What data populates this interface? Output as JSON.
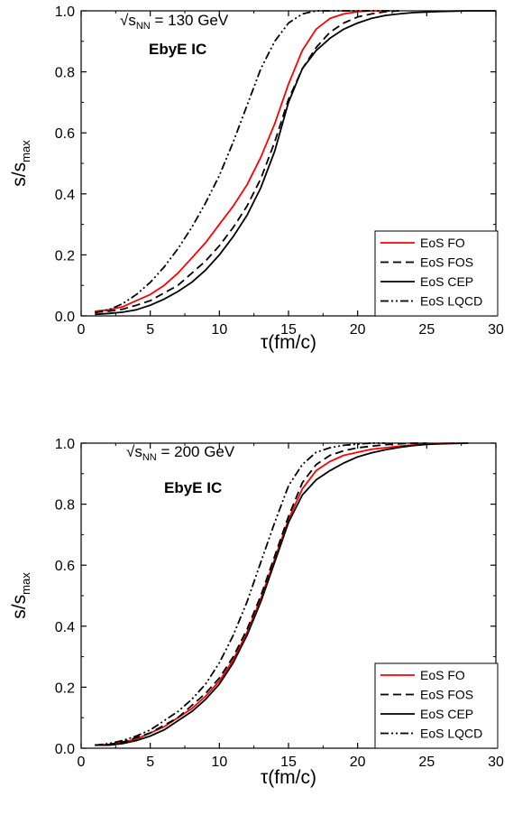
{
  "chart_data": [
    {
      "type": "line",
      "xlabel": "τ(fm/c)",
      "ylabel": {
        "base": "s/s",
        "sub": "max"
      },
      "annotation": {
        "prefix": "√s",
        "sub": "NN",
        "suffix": " = 130 GeV"
      },
      "annotation2": "EbyE IC",
      "xlim": [
        0,
        30
      ],
      "ylim": [
        0,
        1.0
      ],
      "xticks": [
        0,
        5,
        10,
        15,
        20,
        25,
        30
      ],
      "yticks": [
        0.0,
        0.2,
        0.4,
        0.6,
        0.8,
        1.0
      ],
      "legend_position": "bottom-right",
      "series": [
        {
          "name": "EoS FO",
          "color": "#ff0000",
          "dash": "solid",
          "x": [
            1,
            2,
            3,
            4,
            5,
            6,
            7,
            8,
            9,
            10,
            11,
            12,
            13,
            14,
            15,
            16,
            17,
            18,
            19,
            20,
            21,
            22
          ],
          "y": [
            0.015,
            0.02,
            0.03,
            0.05,
            0.07,
            0.1,
            0.14,
            0.19,
            0.24,
            0.3,
            0.36,
            0.43,
            0.52,
            0.63,
            0.76,
            0.87,
            0.94,
            0.975,
            0.99,
            0.997,
            1.0,
            1.0
          ]
        },
        {
          "name": "EoS FOS",
          "color": "#000000",
          "dash": "dash",
          "x": [
            1,
            2,
            3,
            4,
            5,
            6,
            7,
            8,
            9,
            10,
            11,
            12,
            13,
            14,
            15,
            16,
            17,
            18,
            19,
            20,
            21,
            22,
            23
          ],
          "y": [
            0.012,
            0.015,
            0.022,
            0.035,
            0.05,
            0.075,
            0.1,
            0.14,
            0.18,
            0.23,
            0.29,
            0.36,
            0.45,
            0.57,
            0.71,
            0.81,
            0.88,
            0.93,
            0.96,
            0.98,
            0.99,
            0.997,
            1.0
          ]
        },
        {
          "name": "EoS CEP",
          "color": "#000000",
          "dash": "solid",
          "x": [
            1,
            2,
            3,
            4,
            5,
            6,
            7,
            8,
            9,
            10,
            11,
            12,
            13,
            14,
            15,
            16,
            17,
            18,
            19,
            20,
            21,
            22,
            23,
            24,
            25,
            26,
            27,
            28,
            29,
            30
          ],
          "y": [
            0.005,
            0.008,
            0.012,
            0.02,
            0.035,
            0.055,
            0.08,
            0.11,
            0.15,
            0.2,
            0.26,
            0.33,
            0.42,
            0.54,
            0.7,
            0.81,
            0.87,
            0.91,
            0.94,
            0.96,
            0.975,
            0.985,
            0.99,
            0.994,
            0.996,
            0.998,
            0.999,
            1.0,
            1.0,
            1.0
          ]
        },
        {
          "name": "EoS LQCD",
          "color": "#000000",
          "dash": "dashdotdot",
          "x": [
            1,
            2,
            3,
            4,
            5,
            6,
            7,
            8,
            9,
            10,
            11,
            12,
            13,
            14,
            15,
            16,
            17,
            18,
            19,
            20,
            21,
            22,
            23
          ],
          "y": [
            0.01,
            0.02,
            0.04,
            0.07,
            0.11,
            0.16,
            0.22,
            0.29,
            0.37,
            0.46,
            0.57,
            0.69,
            0.81,
            0.9,
            0.96,
            0.99,
            1.0,
            1.0,
            1.0,
            1.0,
            1.0,
            1.0,
            1.0
          ]
        }
      ]
    },
    {
      "type": "line",
      "xlabel": "τ(fm/c)",
      "ylabel": {
        "base": "s/s",
        "sub": "max"
      },
      "annotation": {
        "prefix": "√s",
        "sub": "NN",
        "suffix": " = 200 GeV"
      },
      "annotation2": "EbyE IC",
      "xlim": [
        0,
        30
      ],
      "ylim": [
        0,
        1.0
      ],
      "xticks": [
        0,
        5,
        10,
        15,
        20,
        25,
        30
      ],
      "yticks": [
        0.0,
        0.2,
        0.4,
        0.6,
        0.8,
        1.0
      ],
      "legend_position": "bottom-right",
      "series": [
        {
          "name": "EoS FO",
          "color": "#ff0000",
          "dash": "solid",
          "x": [
            1,
            2,
            3,
            4,
            5,
            6,
            7,
            8,
            9,
            10,
            11,
            12,
            13,
            14,
            15,
            16,
            17,
            18,
            19,
            20,
            21,
            22,
            23,
            24,
            25,
            26,
            27
          ],
          "y": [
            0.01,
            0.012,
            0.02,
            0.03,
            0.05,
            0.07,
            0.1,
            0.13,
            0.17,
            0.22,
            0.29,
            0.38,
            0.49,
            0.62,
            0.75,
            0.85,
            0.91,
            0.94,
            0.96,
            0.97,
            0.98,
            0.985,
            0.99,
            0.994,
            0.997,
            0.999,
            1.0
          ]
        },
        {
          "name": "EoS FOS",
          "color": "#000000",
          "dash": "dash",
          "x": [
            1,
            2,
            3,
            4,
            5,
            6,
            7,
            8,
            9,
            10,
            11,
            12,
            13,
            14,
            15,
            16,
            17,
            18,
            19,
            20,
            21,
            22,
            23,
            24,
            25
          ],
          "y": [
            0.01,
            0.012,
            0.02,
            0.035,
            0.05,
            0.075,
            0.1,
            0.14,
            0.18,
            0.23,
            0.3,
            0.39,
            0.5,
            0.63,
            0.76,
            0.87,
            0.93,
            0.96,
            0.975,
            0.985,
            0.99,
            0.995,
            0.998,
            1.0,
            1.0
          ]
        },
        {
          "name": "EoS CEP",
          "color": "#000000",
          "dash": "solid",
          "x": [
            1,
            2,
            3,
            4,
            5,
            6,
            7,
            8,
            9,
            10,
            11,
            12,
            13,
            14,
            15,
            16,
            17,
            18,
            19,
            20,
            21,
            22,
            23,
            24,
            25,
            26,
            27,
            28
          ],
          "y": [
            0.01,
            0.01,
            0.015,
            0.025,
            0.04,
            0.06,
            0.09,
            0.12,
            0.16,
            0.21,
            0.28,
            0.37,
            0.48,
            0.61,
            0.74,
            0.83,
            0.88,
            0.91,
            0.935,
            0.955,
            0.968,
            0.978,
            0.986,
            0.992,
            0.996,
            0.998,
            0.999,
            1.0
          ]
        },
        {
          "name": "EoS LQCD",
          "color": "#000000",
          "dash": "dashdotdot",
          "x": [
            1,
            2,
            3,
            4,
            5,
            6,
            7,
            8,
            9,
            10,
            11,
            12,
            13,
            14,
            15,
            16,
            17,
            18,
            19,
            20,
            21,
            22
          ],
          "y": [
            0.01,
            0.015,
            0.025,
            0.04,
            0.06,
            0.09,
            0.12,
            0.16,
            0.21,
            0.28,
            0.37,
            0.48,
            0.61,
            0.74,
            0.86,
            0.93,
            0.97,
            0.985,
            0.993,
            0.997,
            1.0,
            1.0
          ]
        }
      ]
    }
  ]
}
